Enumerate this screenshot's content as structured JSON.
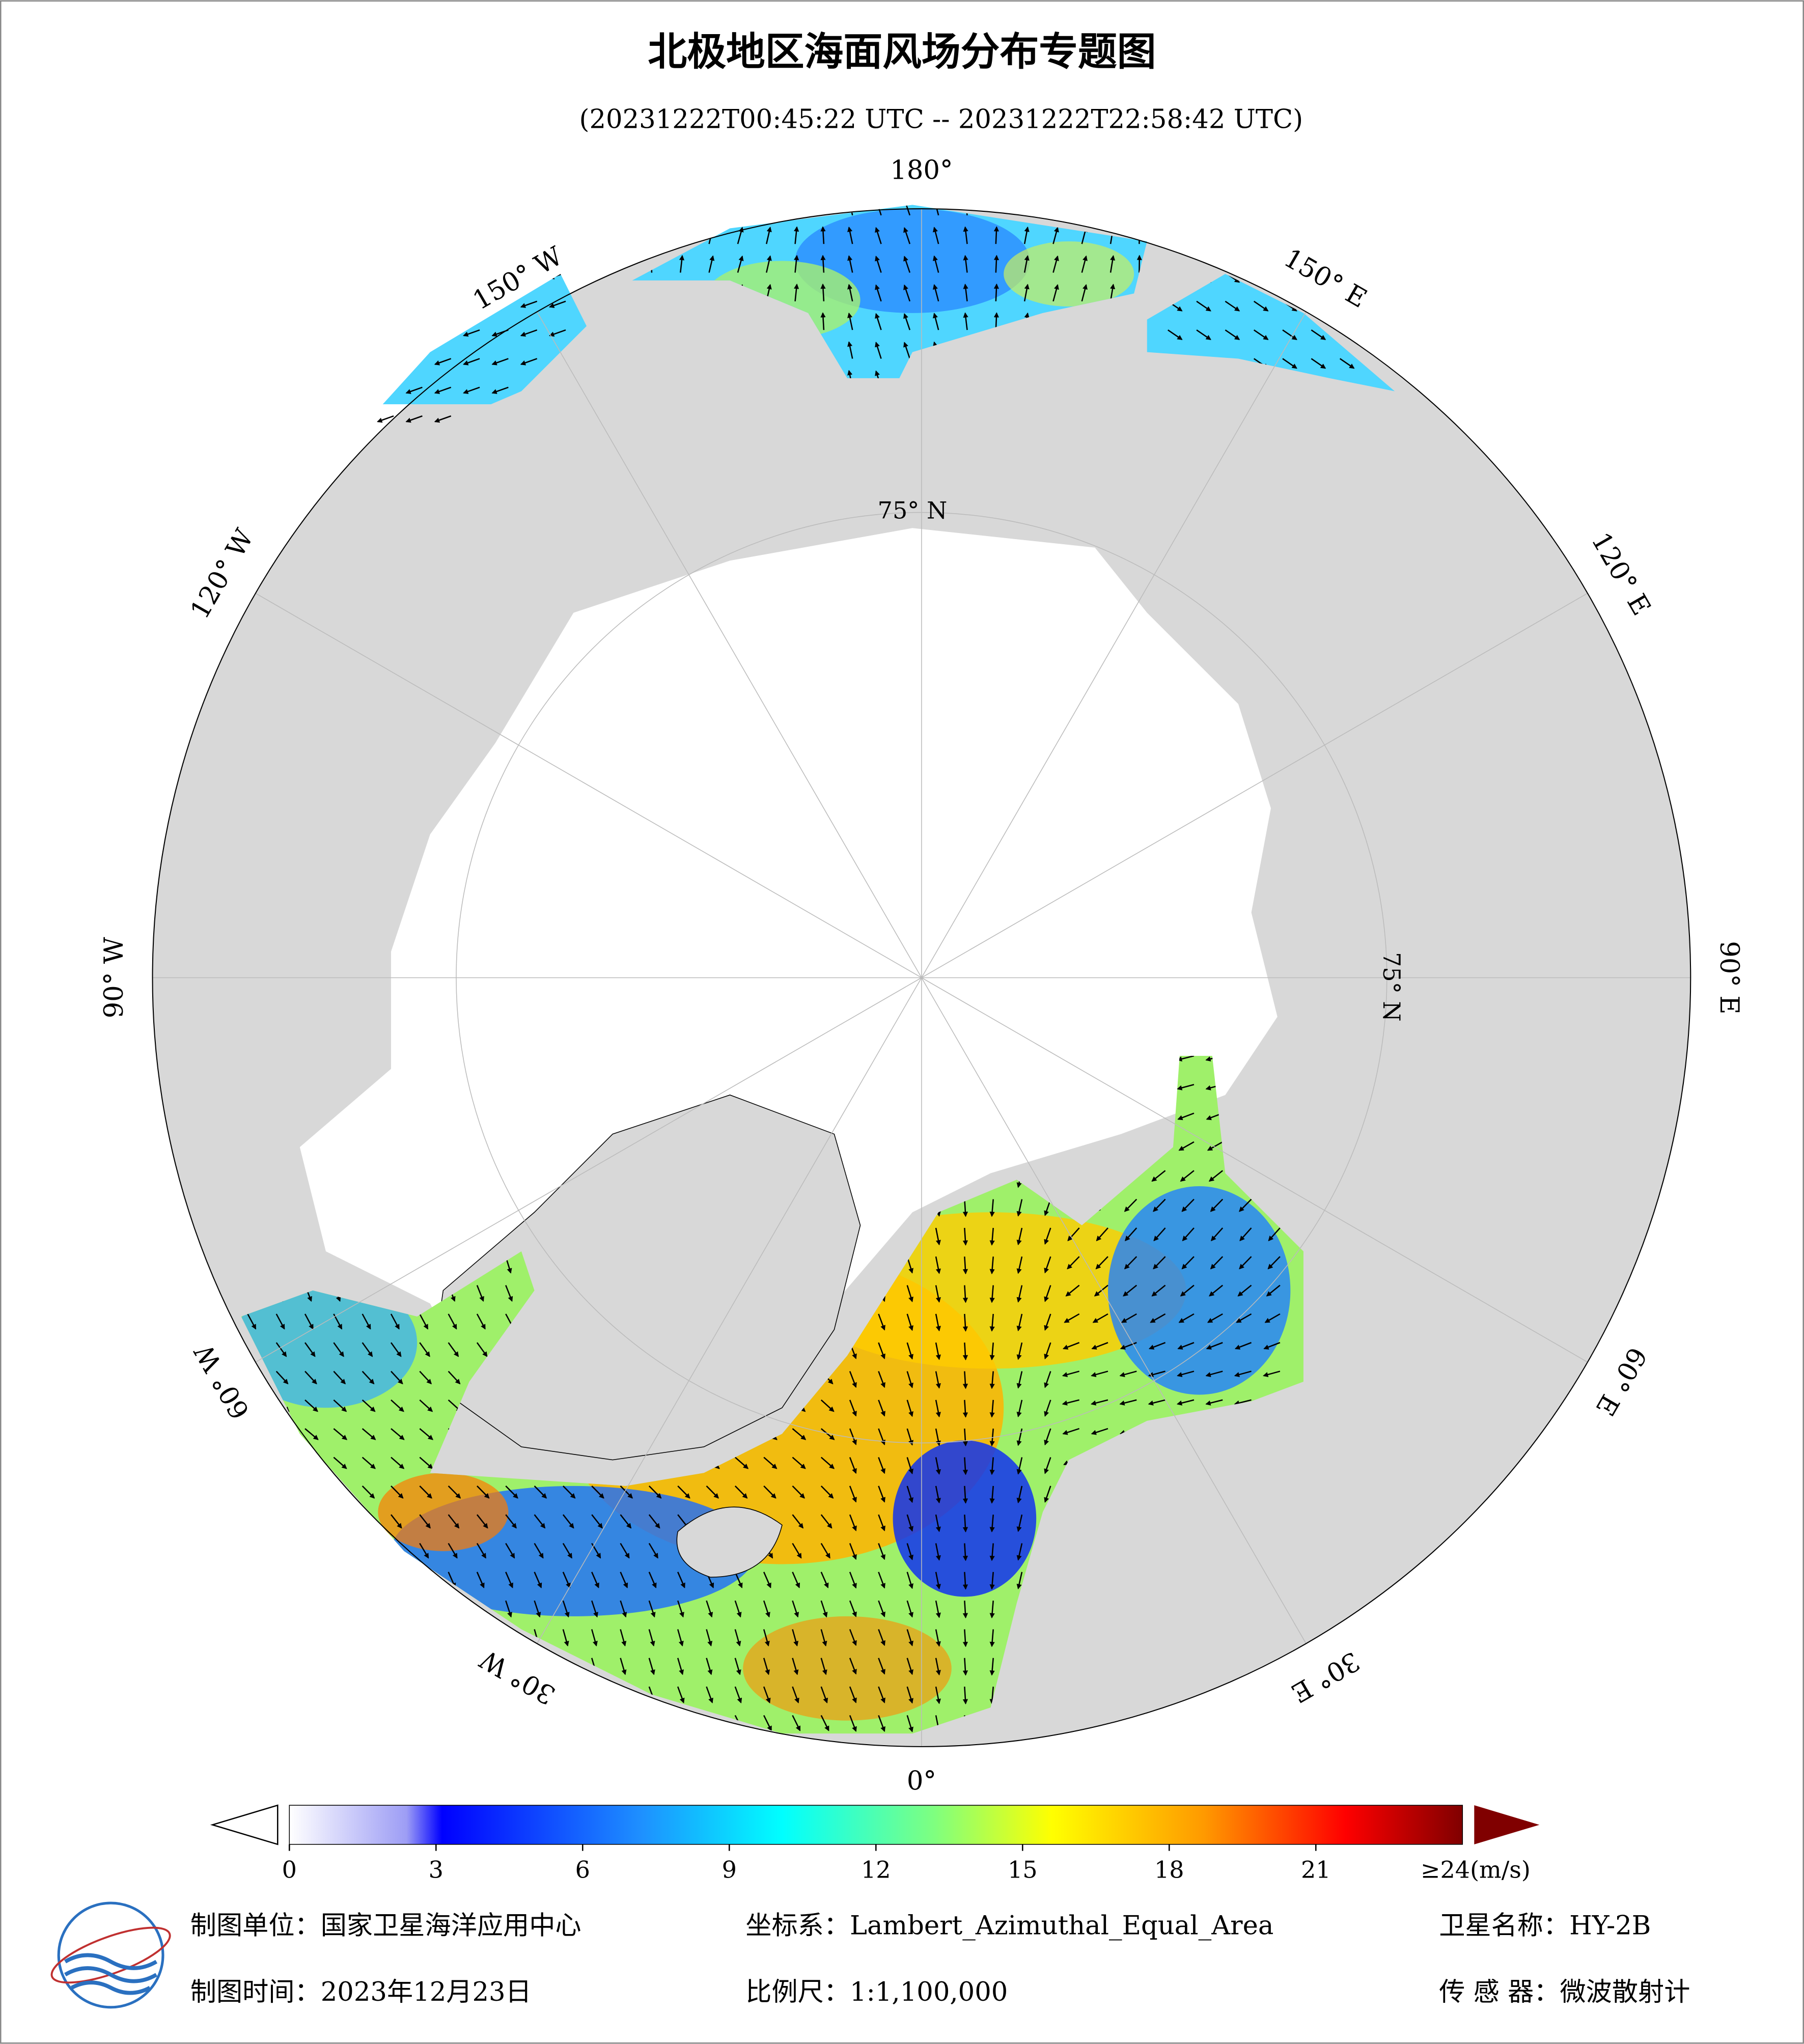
{
  "header": {
    "title": "北极地区海面风场分布专题图",
    "subtitle": "(20231222T00:45:22 UTC -- 20231222T22:58:42 UTC)"
  },
  "map": {
    "longitude_labels": [
      "180°",
      "150° E",
      "120° E",
      "90° E",
      "60° E",
      "30° E",
      "0°",
      "30° W",
      "60° W",
      "90° W",
      "120° W",
      "150° W"
    ],
    "latitude_label": "75° N"
  },
  "colorbar": {
    "lim": [
      0,
      24
    ],
    "ticks": [
      0,
      3,
      6,
      9,
      12,
      15,
      18,
      21
    ],
    "max_label": "≥24(m/s)"
  },
  "footer": {
    "unit": "制图单位：国家卫星海洋应用中心",
    "projection": "坐标系：Lambert_Azimuthal_Equal_Area",
    "satellite": "卫星名称：HY-2B",
    "date": "制图时间：2023年12月23日",
    "scale": "比例尺：1:1,100,000",
    "sensor": "传 感 器：微波散射计"
  }
}
